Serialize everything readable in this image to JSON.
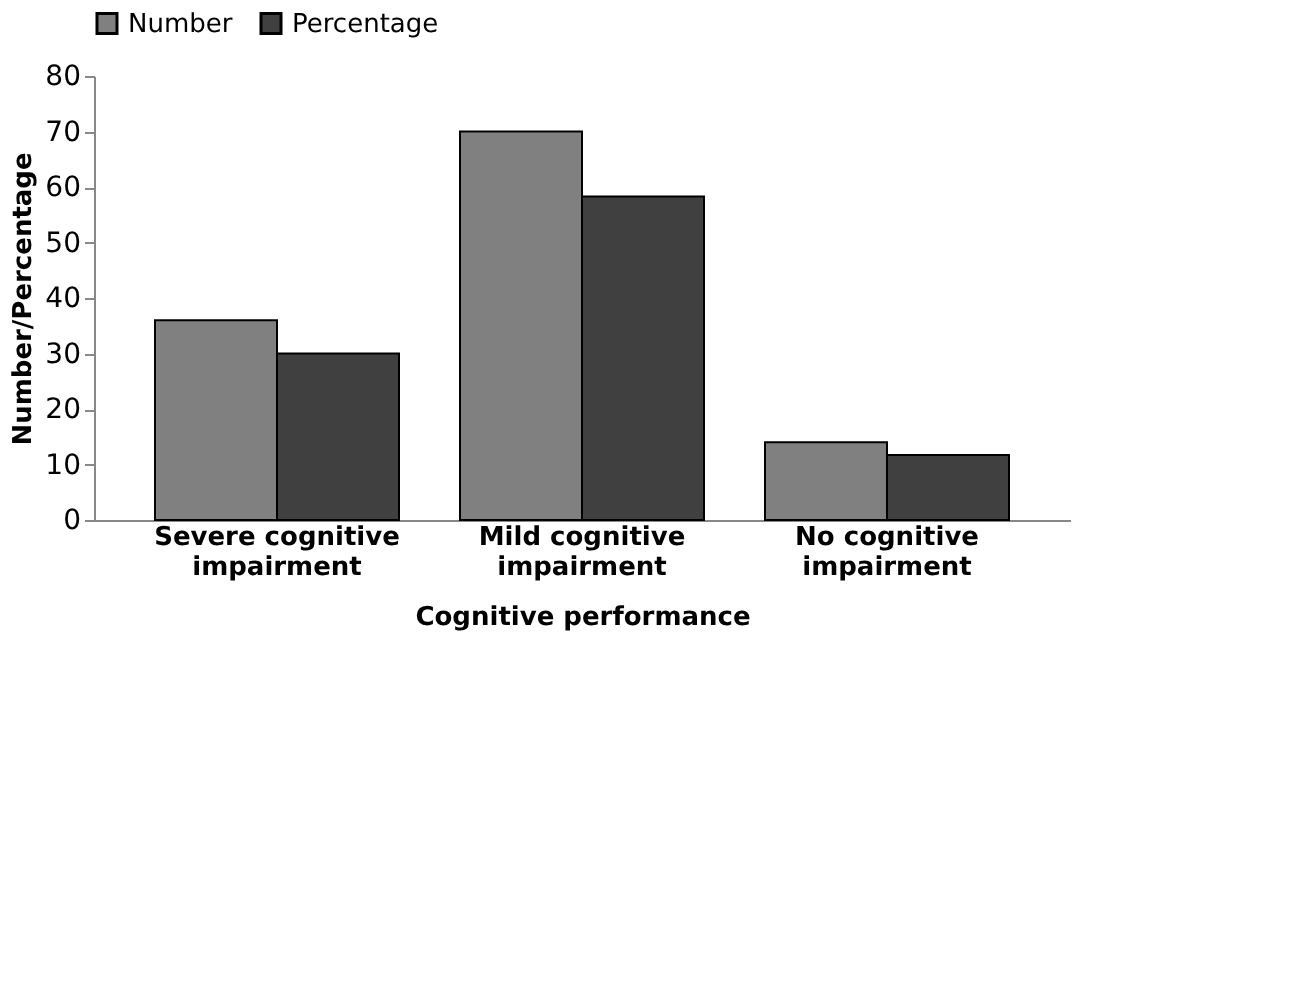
{
  "chart_data": {
    "type": "bar",
    "xlabel": "Cognitive performance",
    "ylabel": "Number/Percentage",
    "categories": [
      "Severe cognitive impairment",
      "Mild cognitive impairment",
      "No cognitive impairment"
    ],
    "series": [
      {
        "name": "Number",
        "color": "#808080",
        "values": [
          36,
          70,
          14
        ]
      },
      {
        "name": "Percentage",
        "color": "#404040",
        "values": [
          30,
          58.3,
          11.7
        ]
      }
    ],
    "ylim": [
      0,
      80
    ],
    "yticks": [
      0,
      10,
      20,
      30,
      40,
      50,
      60,
      70,
      80
    ],
    "grid": false,
    "legend": "top"
  }
}
